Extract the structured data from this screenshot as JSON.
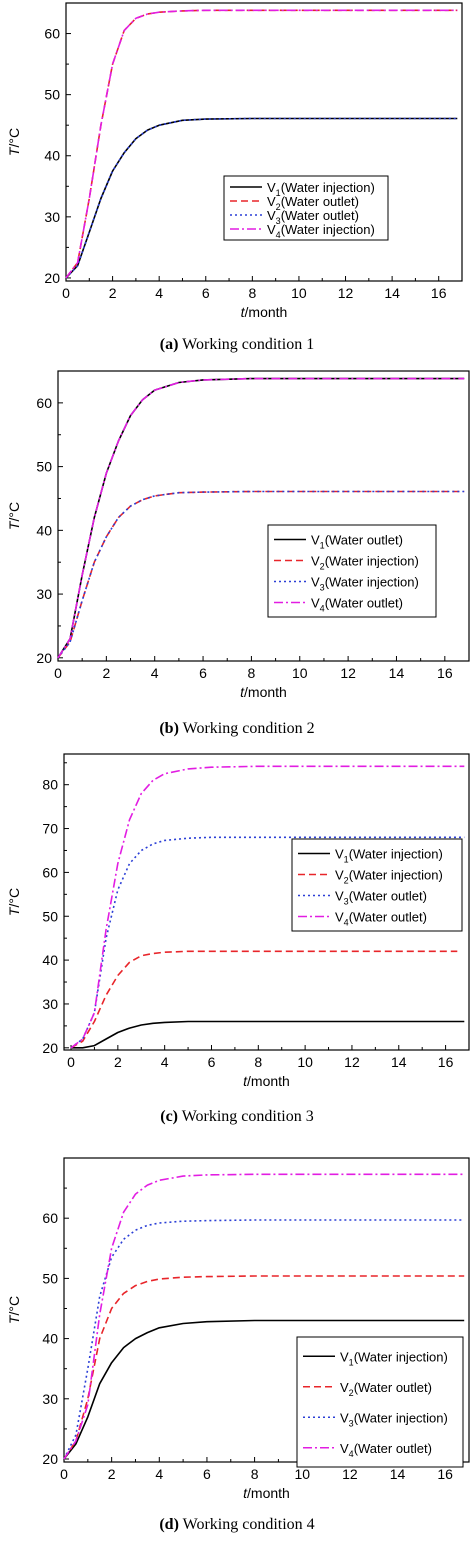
{
  "colors": {
    "V1": "#000000",
    "V2": "#e8252a",
    "V3": "#2b3fd6",
    "V4": "#e21de2"
  },
  "captions": [
    {
      "letter": "(a)",
      "text": " Working condition 1"
    },
    {
      "letter": "(b)",
      "text": " Working condition 2"
    },
    {
      "letter": "(c)",
      "text": " Working condition 3"
    },
    {
      "letter": "(d)",
      "text": " Working condition 4"
    }
  ],
  "chart_data": [
    {
      "type": "line",
      "xlabel_italic": "t",
      "xlabel_rest": "/month",
      "ylabel_italic": "T",
      "ylabel_rest": "/°C",
      "xlim": [
        0,
        17
      ],
      "ylim": [
        19.5,
        65
      ],
      "xticks": [
        0,
        2,
        4,
        6,
        8,
        10,
        12,
        14,
        16
      ],
      "yticks": [
        20,
        30,
        40,
        50,
        60
      ],
      "legend_position": "center-right",
      "series": [
        {
          "name": "V1",
          "label_sub": "1",
          "label_rest": "(Water injection)",
          "style": "solid",
          "x": [
            0,
            0.5,
            1,
            1.5,
            2,
            2.5,
            3,
            3.5,
            4,
            5,
            6,
            8,
            10,
            12,
            14,
            16,
            16.8
          ],
          "y": [
            20,
            22,
            27.5,
            33,
            37.5,
            40.5,
            42.8,
            44.2,
            45,
            45.8,
            46,
            46.1,
            46.1,
            46.1,
            46.1,
            46.1,
            46.1
          ]
        },
        {
          "name": "V2",
          "label_sub": "2",
          "label_rest": "(Water outlet)",
          "style": "dash",
          "x": [
            0,
            0.5,
            1,
            1.5,
            2,
            2.5,
            3,
            3.5,
            4,
            5,
            6,
            8,
            10,
            12,
            14,
            16,
            16.8
          ],
          "y": [
            20,
            22.5,
            33,
            45,
            55,
            60.5,
            62.5,
            63.2,
            63.5,
            63.7,
            63.8,
            63.8,
            63.8,
            63.8,
            63.8,
            63.8,
            63.8
          ]
        },
        {
          "name": "V3",
          "label_sub": "3",
          "label_rest": "(Water outlet)",
          "style": "dot",
          "x": [
            0,
            0.5,
            1,
            1.5,
            2,
            2.5,
            3,
            3.5,
            4,
            5,
            6,
            8,
            10,
            12,
            14,
            16,
            16.8
          ],
          "y": [
            20,
            22,
            27.5,
            33,
            37.5,
            40.5,
            42.8,
            44.2,
            45,
            45.8,
            46,
            46.1,
            46.1,
            46.1,
            46.1,
            46.1,
            46.1
          ]
        },
        {
          "name": "V4",
          "label_sub": "4",
          "label_rest": "(Water injection)",
          "style": "dashdot",
          "x": [
            0,
            0.5,
            1,
            1.5,
            2,
            2.5,
            3,
            3.5,
            4,
            5,
            6,
            8,
            10,
            12,
            14,
            16,
            16.8
          ],
          "y": [
            20,
            22.5,
            33,
            45,
            55,
            60.5,
            62.5,
            63.2,
            63.5,
            63.7,
            63.8,
            63.8,
            63.8,
            63.8,
            63.8,
            63.8,
            63.8
          ]
        }
      ]
    },
    {
      "type": "line",
      "xlabel_italic": "t",
      "xlabel_rest": "/month",
      "ylabel_italic": "T",
      "ylabel_rest": "/°C",
      "xlim": [
        0,
        17
      ],
      "ylim": [
        19.5,
        65
      ],
      "xticks": [
        0,
        2,
        4,
        6,
        8,
        10,
        12,
        14,
        16
      ],
      "yticks": [
        20,
        30,
        40,
        50,
        60
      ],
      "legend_position": "center-right",
      "series": [
        {
          "name": "V1",
          "label_sub": "1",
          "label_rest": "(Water outlet)",
          "style": "solid",
          "x": [
            0,
            0.5,
            1,
            1.5,
            2,
            2.5,
            3,
            3.5,
            4,
            5,
            6,
            8,
            10,
            12,
            14,
            16,
            16.8
          ],
          "y": [
            20,
            23,
            33,
            42,
            49,
            54,
            58,
            60.5,
            62,
            63.2,
            63.6,
            63.8,
            63.8,
            63.8,
            63.8,
            63.8,
            63.8
          ]
        },
        {
          "name": "V2",
          "label_sub": "2",
          "label_rest": "(Water injection)",
          "style": "dash",
          "x": [
            0,
            0.5,
            1,
            1.5,
            2,
            2.5,
            3,
            3.5,
            4,
            5,
            6,
            8,
            10,
            12,
            14,
            16,
            16.8
          ],
          "y": [
            20,
            22.5,
            29,
            35,
            39,
            42,
            43.8,
            44.8,
            45.4,
            45.9,
            46,
            46.1,
            46.1,
            46.1,
            46.1,
            46.1,
            46.1
          ]
        },
        {
          "name": "V3",
          "label_sub": "3",
          "label_rest": "(Water injection)",
          "style": "dot",
          "x": [
            0,
            0.5,
            1,
            1.5,
            2,
            2.5,
            3,
            3.5,
            4,
            5,
            6,
            8,
            10,
            12,
            14,
            16,
            16.8
          ],
          "y": [
            20,
            22.5,
            29,
            35,
            39,
            42,
            43.8,
            44.8,
            45.4,
            45.9,
            46,
            46.1,
            46.1,
            46.1,
            46.1,
            46.1,
            46.1
          ]
        },
        {
          "name": "V4",
          "label_sub": "4",
          "label_rest": "(Water outlet)",
          "style": "dashdot",
          "x": [
            0,
            0.5,
            1,
            1.5,
            2,
            2.5,
            3,
            3.5,
            4,
            5,
            6,
            8,
            10,
            12,
            14,
            16,
            16.8
          ],
          "y": [
            20,
            23,
            33,
            42,
            49,
            54,
            58,
            60.5,
            62,
            63.2,
            63.6,
            63.8,
            63.8,
            63.8,
            63.8,
            63.8,
            63.8
          ]
        }
      ]
    },
    {
      "type": "line",
      "xlabel_italic": "t",
      "xlabel_rest": "/month",
      "ylabel_italic": "T",
      "ylabel_rest": "/°C",
      "xlim": [
        -0.3,
        17
      ],
      "ylim": [
        19.5,
        87
      ],
      "xticks": [
        0,
        2,
        4,
        6,
        8,
        10,
        12,
        14,
        16
      ],
      "yticks": [
        20,
        30,
        40,
        50,
        60,
        70,
        80
      ],
      "legend_position": "center-right",
      "series": [
        {
          "name": "V1",
          "label_sub": "1",
          "label_rest": "(Water injection)",
          "style": "solid",
          "x": [
            0,
            0.5,
            1,
            1.5,
            2,
            2.5,
            3,
            3.5,
            4,
            5,
            6,
            8,
            10,
            12,
            14,
            16,
            16.8
          ],
          "y": [
            20,
            20,
            20.5,
            22,
            23.5,
            24.5,
            25.2,
            25.6,
            25.8,
            26,
            26,
            26,
            26,
            26,
            26,
            26,
            26
          ]
        },
        {
          "name": "V2",
          "label_sub": "2",
          "label_rest": "(Water injection)",
          "style": "dash",
          "x": [
            0,
            0.5,
            1,
            1.5,
            2,
            2.5,
            3,
            3.5,
            4,
            5,
            6,
            8,
            10,
            12,
            14,
            16,
            16.5
          ],
          "y": [
            20,
            21.5,
            26,
            32,
            36.5,
            39.5,
            41,
            41.5,
            41.8,
            42,
            42,
            42,
            42,
            42,
            42,
            42,
            42
          ]
        },
        {
          "name": "V3",
          "label_sub": "3",
          "label_rest": "(Water outlet)",
          "style": "dot",
          "x": [
            0,
            0.5,
            1,
            1.5,
            2,
            2.5,
            3,
            3.5,
            4,
            5,
            6,
            8,
            10,
            12,
            14,
            16,
            16.8
          ],
          "y": [
            20,
            22,
            28,
            45,
            56,
            62,
            65,
            66.5,
            67.3,
            67.8,
            68,
            68,
            68,
            68,
            68,
            68,
            68
          ]
        },
        {
          "name": "V4",
          "label_sub": "4",
          "label_rest": "(Water outlet)",
          "style": "dashdot",
          "x": [
            0,
            0.5,
            1,
            1.5,
            2,
            2.5,
            3,
            3.5,
            4,
            5,
            6,
            8,
            10,
            12,
            14,
            16,
            16.8
          ],
          "y": [
            20,
            22,
            28,
            47,
            62,
            72,
            78,
            81,
            82.5,
            83.6,
            84,
            84.2,
            84.2,
            84.2,
            84.2,
            84.2,
            84.2
          ]
        }
      ]
    },
    {
      "type": "line",
      "xlabel_italic": "t",
      "xlabel_rest": "/month",
      "ylabel_italic": "T",
      "ylabel_rest": "/°C",
      "xlim": [
        0,
        17
      ],
      "ylim": [
        19.5,
        70
      ],
      "xticks": [
        0,
        2,
        4,
        6,
        8,
        10,
        12,
        14,
        16
      ],
      "yticks": [
        20,
        30,
        40,
        50,
        60
      ],
      "legend_position": "center-right",
      "series": [
        {
          "name": "V1",
          "label_sub": "1",
          "label_rest": "(Water injection)",
          "style": "solid",
          "x": [
            0,
            0.5,
            1,
            1.5,
            2,
            2.5,
            3,
            3.5,
            4,
            5,
            6,
            8,
            10,
            12,
            14,
            16,
            16.8
          ],
          "y": [
            20,
            22.5,
            27,
            32.5,
            36,
            38.5,
            40,
            41,
            41.8,
            42.5,
            42.8,
            43,
            43,
            43,
            43,
            43,
            43
          ]
        },
        {
          "name": "V2",
          "label_sub": "2",
          "label_rest": "(Water outlet)",
          "style": "dash",
          "x": [
            0,
            0.5,
            1,
            1.5,
            2,
            2.5,
            3,
            3.5,
            4,
            5,
            6,
            8,
            10,
            12,
            14,
            16,
            16.8
          ],
          "y": [
            20,
            23,
            30,
            40,
            45,
            47.5,
            48.8,
            49.5,
            49.9,
            50.2,
            50.3,
            50.4,
            50.4,
            50.4,
            50.4,
            50.4,
            50.4
          ]
        },
        {
          "name": "V3",
          "label_sub": "3",
          "label_rest": "(Water injection)",
          "style": "dot",
          "x": [
            0,
            0.5,
            1,
            1.5,
            2,
            2.5,
            3,
            3.5,
            4,
            5,
            6,
            8,
            10,
            12,
            14,
            16,
            16.8
          ],
          "y": [
            20,
            24,
            35,
            47,
            53.5,
            56.5,
            58,
            58.8,
            59.2,
            59.5,
            59.6,
            59.7,
            59.7,
            59.7,
            59.7,
            59.7,
            59.7
          ]
        },
        {
          "name": "V4",
          "label_sub": "4",
          "label_rest": "(Water outlet)",
          "style": "dashdot",
          "x": [
            0,
            0.5,
            1,
            1.5,
            2,
            2.5,
            3,
            3.5,
            4,
            5,
            6,
            8,
            10,
            12,
            14,
            16,
            16.8
          ],
          "y": [
            20,
            23,
            29,
            44,
            55,
            61,
            64,
            65.5,
            66.3,
            67,
            67.2,
            67.3,
            67.3,
            67.3,
            67.3,
            67.3,
            67.3
          ]
        }
      ]
    }
  ]
}
